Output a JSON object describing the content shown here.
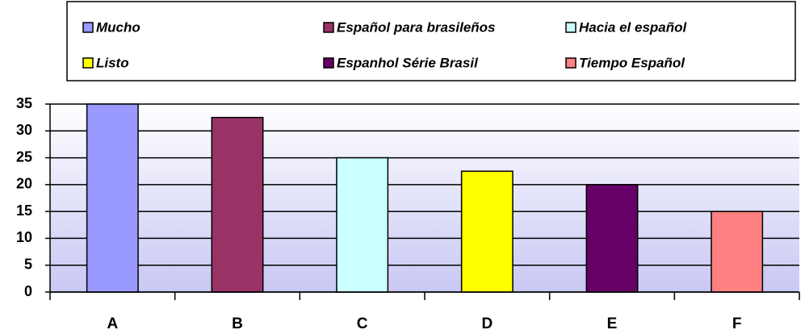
{
  "chart_data": {
    "type": "bar",
    "categories": [
      "A",
      "B",
      "C",
      "D",
      "E",
      "F"
    ],
    "values": [
      35,
      32.5,
      25,
      22.5,
      20,
      15
    ],
    "colors": [
      "#9999ff",
      "#993366",
      "#ccffff",
      "#ffff00",
      "#660066",
      "#ff8080"
    ],
    "legend": [
      "Mucho",
      "Español para brasileños",
      "Hacia el español",
      "Listo",
      "Espanhol Série Brasil",
      "Tiempo Español"
    ],
    "ylim": [
      0,
      35
    ],
    "yticks": [
      0,
      5,
      10,
      15,
      20,
      25,
      30,
      35
    ],
    "grid": true
  }
}
